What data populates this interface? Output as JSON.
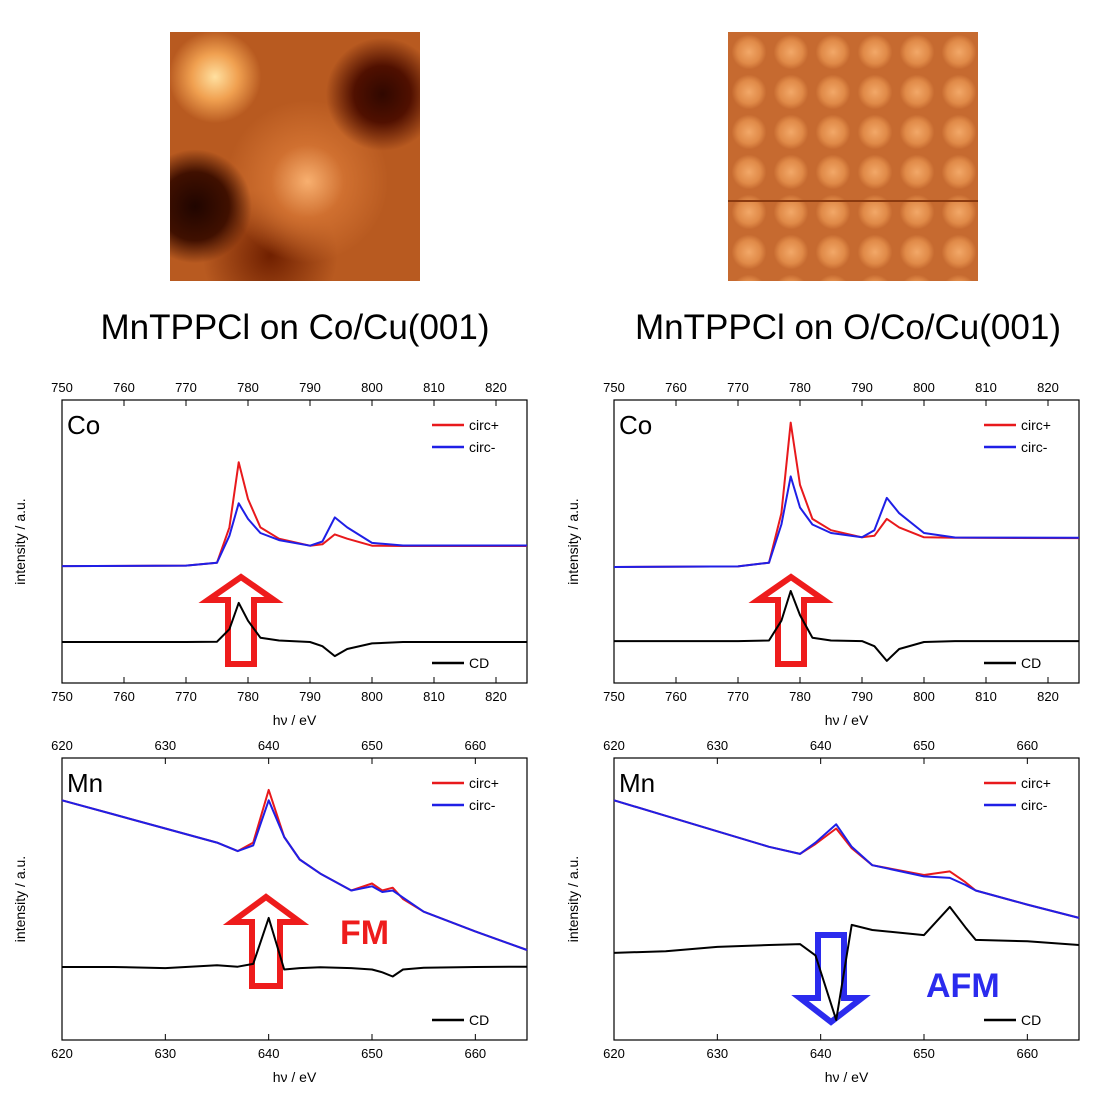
{
  "chart_data": [
    {
      "type": "line",
      "title": "MnTPPCl on Co/Cu(001)",
      "label": "Co",
      "xlabel": "hν / eV",
      "ylabel": "intensity / a.u.",
      "x": [
        750,
        770,
        775,
        777,
        778.5,
        780,
        782,
        785,
        790,
        792,
        794,
        796,
        800,
        805,
        825
      ],
      "series": [
        {
          "name": "circ+",
          "color": "#e8191c",
          "legend": "upper right",
          "values": [
            41.3,
            41.5,
            42.5,
            55,
            78,
            65,
            55,
            51,
            48.5,
            49,
            52.5,
            51,
            48.5,
            48.4,
            48.4
          ]
        },
        {
          "name": "circ-",
          "color": "#1f1fe6",
          "legend": "upper right",
          "values": [
            41.3,
            41.5,
            42.5,
            52,
            63.5,
            58,
            53,
            50.5,
            48.5,
            50,
            58.5,
            55,
            49.5,
            48.6,
            48.6
          ]
        },
        {
          "name": "CD",
          "color": "#000000",
          "legend": "lower right",
          "values": [
            14.5,
            14.5,
            14.6,
            19,
            28.3,
            22,
            16,
            15,
            14.5,
            13,
            9.5,
            12,
            14,
            14.5,
            14.5
          ]
        }
      ],
      "xlim": [
        750,
        825
      ],
      "xticks": [
        750,
        760,
        770,
        780,
        790,
        800,
        810,
        820
      ],
      "ylim": [
        0,
        100
      ]
    },
    {
      "type": "line",
      "title": "MnTPPCl on O/Co/Cu(001)",
      "label": "Co",
      "xlabel": "hν / eV",
      "ylabel": "intensity / a.u.",
      "x": [
        750,
        770,
        775,
        777,
        778.5,
        780,
        782,
        785,
        790,
        792,
        794,
        796,
        800,
        805,
        825
      ],
      "series": [
        {
          "name": "circ+",
          "color": "#e8191c",
          "legend": "upper right",
          "values": [
            41,
            41.2,
            42.5,
            60,
            92,
            70,
            58,
            54,
            51.5,
            52,
            58,
            55,
            51.5,
            51.3,
            51.2
          ]
        },
        {
          "name": "circ-",
          "color": "#1f1fe6",
          "legend": "upper right",
          "values": [
            41,
            41.2,
            42.5,
            56,
            73,
            62,
            56,
            53,
            51.5,
            54,
            65.4,
            60,
            53,
            51.4,
            51.3
          ]
        },
        {
          "name": "CD",
          "color": "#000000",
          "legend": "lower right",
          "values": [
            14.8,
            14.8,
            15,
            22,
            32.5,
            24,
            16,
            15,
            14.8,
            13,
            7.8,
            12,
            14.5,
            14.8,
            14.8
          ]
        }
      ],
      "xlim": [
        750,
        825
      ],
      "xticks": [
        750,
        760,
        770,
        780,
        790,
        800,
        810,
        820
      ],
      "ylim": [
        0,
        100
      ]
    },
    {
      "type": "line",
      "label": "Mn",
      "xlabel": "hν / eV",
      "ylabel": "intensity / a.u.",
      "annotation": "FM",
      "x": [
        620,
        625,
        630,
        635,
        637,
        638.5,
        640,
        641.5,
        643,
        645,
        648,
        650,
        651,
        652,
        653,
        655,
        660,
        665
      ],
      "series": [
        {
          "name": "circ+",
          "color": "#e8191c",
          "legend": "upper right",
          "values": [
            85,
            80,
            75,
            70,
            67,
            70,
            88.7,
            72,
            64,
            59,
            53,
            55.5,
            53,
            54,
            50,
            45.5,
            38.5,
            31.9
          ]
        },
        {
          "name": "circ-",
          "color": "#1f1fe6",
          "legend": "upper right",
          "values": [
            85,
            80,
            75,
            70,
            67,
            69,
            85,
            72,
            64,
            59,
            53,
            54.5,
            52.5,
            53,
            50.5,
            45.5,
            38.5,
            31.9
          ]
        },
        {
          "name": "CD",
          "color": "#000000",
          "legend": "lower right",
          "values": [
            25.9,
            25.9,
            25.5,
            26.5,
            26,
            27,
            43.3,
            25,
            25.5,
            25.8,
            25.5,
            25,
            24,
            22.5,
            25,
            25.6,
            25.9,
            26
          ]
        }
      ],
      "xlim": [
        620,
        665
      ],
      "xticks": [
        620,
        630,
        640,
        650,
        660
      ],
      "ylim": [
        0,
        100
      ]
    },
    {
      "type": "line",
      "label": "Mn",
      "xlabel": "hν / eV",
      "ylabel": "intensity / a.u.",
      "annotation": "AFM",
      "x": [
        620,
        625,
        630,
        635,
        638,
        639.5,
        641.5,
        643,
        645,
        650,
        652.5,
        654,
        655,
        660,
        665
      ],
      "series": [
        {
          "name": "circ+",
          "color": "#e8191c",
          "legend": "upper right",
          "values": [
            85,
            79.5,
            74,
            68.5,
            66,
            69.5,
            75,
            68,
            62,
            58.5,
            59.8,
            56,
            53,
            48,
            43.3
          ]
        },
        {
          "name": "circ-",
          "color": "#1f1fe6",
          "legend": "upper right",
          "values": [
            85,
            79.5,
            74,
            68.5,
            66,
            70,
            76.5,
            68.5,
            62,
            58,
            57.5,
            55,
            53,
            48,
            43.3
          ]
        },
        {
          "name": "CD",
          "color": "#000000",
          "legend": "lower right",
          "values": [
            30.9,
            31.5,
            33,
            33.7,
            34,
            30,
            7.1,
            40.8,
            39,
            37.2,
            47.2,
            40,
            35.5,
            35,
            33.7
          ]
        }
      ],
      "xlim": [
        620,
        665
      ],
      "xticks": [
        620,
        630,
        640,
        650,
        660
      ],
      "ylim": [
        0,
        100
      ]
    }
  ]
}
